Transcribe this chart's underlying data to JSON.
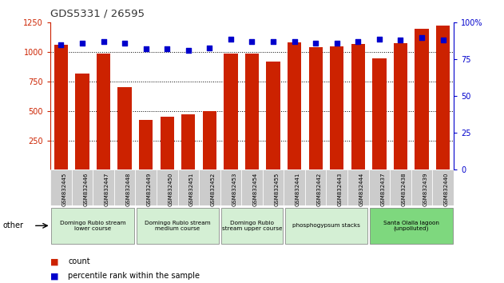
{
  "title": "GDS5331 / 26595",
  "samples": [
    "GSM832445",
    "GSM832446",
    "GSM832447",
    "GSM832448",
    "GSM832449",
    "GSM832450",
    "GSM832451",
    "GSM832452",
    "GSM832453",
    "GSM832454",
    "GSM832455",
    "GSM832441",
    "GSM832442",
    "GSM832443",
    "GSM832444",
    "GSM832437",
    "GSM832438",
    "GSM832439",
    "GSM832440"
  ],
  "counts": [
    1060,
    820,
    990,
    700,
    425,
    450,
    470,
    500,
    990,
    990,
    920,
    1080,
    1045,
    1050,
    1070,
    945,
    1075,
    1200,
    1225
  ],
  "percentiles": [
    85,
    86,
    87,
    86,
    82,
    82,
    81,
    83,
    89,
    87,
    87,
    87,
    86,
    86,
    87,
    89,
    88,
    90,
    88
  ],
  "bar_color": "#cc2200",
  "dot_color": "#0000cc",
  "ylim_left": [
    0,
    1250
  ],
  "ylim_right": [
    0,
    100
  ],
  "yticks_left": [
    250,
    500,
    750,
    1000,
    1250
  ],
  "yticks_right": [
    0,
    25,
    50,
    75,
    100
  ],
  "groups": [
    {
      "label": "Domingo Rubio stream\nlower course",
      "start": 0,
      "end": 3,
      "color": "#d4efd4"
    },
    {
      "label": "Domingo Rubio stream\nmedium course",
      "start": 4,
      "end": 7,
      "color": "#d4efd4"
    },
    {
      "label": "Domingo Rubio\nstream upper course",
      "start": 8,
      "end": 10,
      "color": "#d4efd4"
    },
    {
      "label": "phosphogypsum stacks",
      "start": 11,
      "end": 14,
      "color": "#d4efd4"
    },
    {
      "label": "Santa Olalla lagoon\n(unpolluted)",
      "start": 15,
      "end": 18,
      "color": "#7ed87e"
    }
  ],
  "other_label": "other",
  "legend_count_label": "count",
  "legend_pct_label": "percentile rank within the sample",
  "title_color": "#333333",
  "left_axis_color": "#cc2200",
  "right_axis_color": "#0000cc",
  "grid_color": "black",
  "grid_linestyle": ":",
  "grid_linewidth": 0.7,
  "grid_values": [
    250,
    500,
    750,
    1000
  ],
  "bar_width": 0.65,
  "dot_size": 14,
  "title_fontsize": 9.5,
  "tick_fontsize": 7,
  "label_fontsize": 5.2,
  "legend_fontsize": 7
}
